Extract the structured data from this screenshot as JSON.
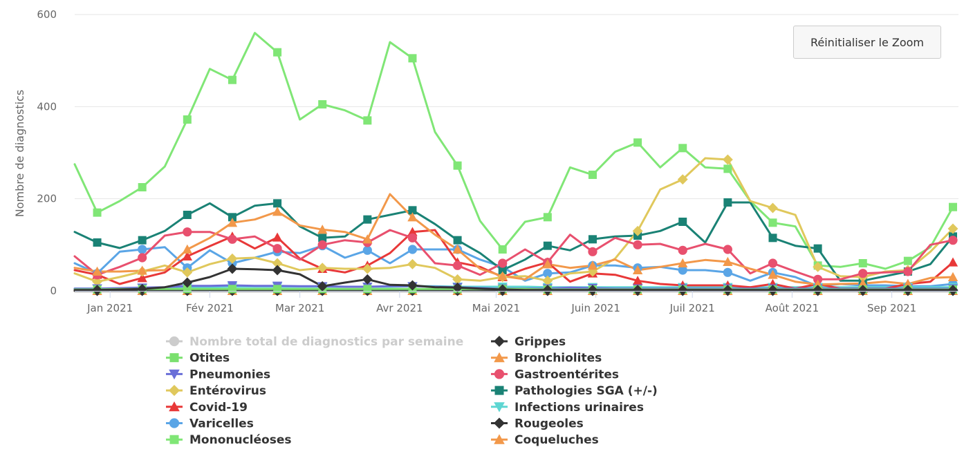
{
  "reset_zoom_label": "Réinitialiser le Zoom",
  "chart_data": {
    "type": "line",
    "title": "",
    "xlabel": "",
    "ylabel": "Nombre de diagnostics",
    "ylim": [
      0,
      600
    ],
    "yticks": [
      0,
      200,
      400,
      600
    ],
    "x_start": "2020-12-21",
    "x_step_days": 7,
    "week_count": 40,
    "month_ticks": [
      {
        "label": "Jan 2021",
        "date": "2021-01-01"
      },
      {
        "label": "Fév 2021",
        "date": "2021-02-01"
      },
      {
        "label": "Mar 2021",
        "date": "2021-03-01"
      },
      {
        "label": "Avr 2021",
        "date": "2021-04-01"
      },
      {
        "label": "Mai 2021",
        "date": "2021-05-01"
      },
      {
        "label": "Juin 2021",
        "date": "2021-06-01"
      },
      {
        "label": "Juil 2021",
        "date": "2021-07-01"
      },
      {
        "label": "Août 2021",
        "date": "2021-08-01"
      },
      {
        "label": "Sep 2021",
        "date": "2021-09-01"
      }
    ],
    "grid": true,
    "legend_position": "bottom",
    "series": [
      {
        "name": "Nombre total de diagnostics par semaine",
        "color": "#cccccc",
        "marker": "circle",
        "hidden": true,
        "values": []
      },
      {
        "name": "Grippes",
        "color": "#333333",
        "marker": "diamond",
        "values": [
          2,
          2,
          3,
          4,
          8,
          18,
          30,
          48,
          47,
          45,
          36,
          10,
          18,
          25,
          13,
          12,
          8,
          7,
          5,
          3,
          2,
          2,
          2,
          2,
          2,
          2,
          2,
          2,
          2,
          2,
          2,
          2,
          2,
          2,
          2,
          2,
          2,
          2,
          2,
          2
        ]
      },
      {
        "name": "Otites",
        "color": "#7ae06e",
        "marker": "square",
        "values": [
          3,
          3,
          4,
          4,
          4,
          4,
          4,
          4,
          4,
          4,
          4,
          4,
          4,
          4,
          4,
          4,
          4,
          4,
          4,
          4,
          4,
          3,
          3,
          3,
          3,
          3,
          3,
          3,
          3,
          3,
          3,
          3,
          3,
          3,
          3,
          3,
          3,
          3,
          3,
          3
        ]
      },
      {
        "name": "Bronchiolites",
        "color": "#f2984a",
        "marker": "triangle",
        "values": [
          50,
          42,
          42,
          44,
          45,
          90,
          115,
          148,
          155,
          172,
          142,
          133,
          128,
          112,
          210,
          160,
          122,
          90,
          48,
          32,
          25,
          58,
          50,
          55,
          68,
          45,
          52,
          60,
          67,
          63,
          48,
          35,
          20,
          14,
          15,
          16,
          20,
          15,
          28,
          30
        ]
      },
      {
        "name": "Pneumonies",
        "color": "#6a6fd8",
        "marker": "triangle-down",
        "values": [
          5,
          5,
          6,
          7,
          8,
          11,
          11,
          12,
          11,
          11,
          10,
          10,
          9,
          9,
          10,
          10,
          9,
          8,
          6,
          5,
          5,
          5,
          7,
          6,
          5,
          5,
          5,
          5,
          5,
          5,
          5,
          5,
          5,
          5,
          5,
          5,
          5,
          5,
          5,
          5
        ]
      },
      {
        "name": "Gastroentérites",
        "color": "#e8506e",
        "marker": "circle",
        "values": [
          75,
          35,
          52,
          72,
          120,
          128,
          128,
          112,
          118,
          92,
          68,
          100,
          110,
          105,
          132,
          115,
          60,
          55,
          35,
          60,
          90,
          62,
          122,
          85,
          115,
          100,
          102,
          88,
          102,
          90,
          38,
          60,
          42,
          25,
          25,
          38,
          40,
          42,
          100,
          110
        ]
      },
      {
        "name": "Entérovirus",
        "color": "#e0c85c",
        "marker": "diamond",
        "values": [
          38,
          20,
          30,
          42,
          55,
          40,
          58,
          70,
          72,
          60,
          45,
          50,
          48,
          48,
          50,
          58,
          50,
          25,
          22,
          30,
          32,
          22,
          38,
          42,
          70,
          130,
          220,
          242,
          288,
          285,
          195,
          180,
          165,
          52,
          32,
          30,
          42,
          45,
          85,
          135
        ]
      },
      {
        "name": "Pathologies SGA (+/-)",
        "color": "#1a8275",
        "marker": "square",
        "values": [
          128,
          105,
          93,
          110,
          130,
          165,
          190,
          160,
          185,
          190,
          140,
          115,
          118,
          155,
          165,
          175,
          145,
          110,
          82,
          45,
          68,
          98,
          88,
          112,
          118,
          120,
          130,
          150,
          105,
          192,
          192,
          115,
          98,
          92,
          22,
          22,
          32,
          42,
          58,
          118
        ]
      },
      {
        "name": "Covid-19",
        "color": "#e83838",
        "marker": "triangle",
        "values": [
          45,
          35,
          15,
          28,
          40,
          75,
          97,
          118,
          92,
          116,
          70,
          48,
          40,
          55,
          82,
          128,
          132,
          62,
          52,
          30,
          48,
          62,
          20,
          38,
          35,
          22,
          15,
          12,
          12,
          12,
          8,
          15,
          5,
          15,
          5,
          5,
          5,
          15,
          20,
          62
        ]
      },
      {
        "name": "Infections urinaires",
        "color": "#5ed6d2",
        "marker": "triangle-down",
        "values": [
          5,
          5,
          5,
          6,
          6,
          7,
          8,
          9,
          9,
          9,
          9,
          9,
          9,
          9,
          9,
          10,
          10,
          9,
          9,
          9,
          9,
          8,
          8,
          8,
          8,
          8,
          8,
          8,
          8,
          8,
          8,
          8,
          8,
          8,
          8,
          8,
          8,
          8,
          8,
          8
        ]
      },
      {
        "name": "Varicelles",
        "color": "#5aa5e6",
        "marker": "circle",
        "values": [
          60,
          38,
          85,
          90,
          95,
          50,
          88,
          60,
          72,
          85,
          82,
          98,
          72,
          88,
          60,
          90,
          90,
          90,
          68,
          52,
          22,
          38,
          40,
          55,
          55,
          50,
          52,
          45,
          45,
          40,
          22,
          40,
          30,
          10,
          15,
          12,
          12,
          10,
          10,
          15
        ]
      },
      {
        "name": "Rougeoles",
        "color": "#333333",
        "marker": "diamond",
        "values": [
          0,
          0,
          0,
          0,
          0,
          0,
          0,
          0,
          0,
          0,
          0,
          0,
          0,
          0,
          0,
          0,
          0,
          0,
          0,
          0,
          0,
          0,
          0,
          0,
          0,
          0,
          0,
          0,
          0,
          0,
          0,
          0,
          0,
          0,
          0,
          0,
          0,
          0,
          0,
          0
        ]
      },
      {
        "name": "Mononucléoses",
        "color": "#80e676",
        "marker": "square",
        "values": [
          275,
          170,
          195,
          225,
          270,
          372,
          482,
          458,
          560,
          518,
          372,
          405,
          392,
          370,
          540,
          505,
          345,
          272,
          152,
          90,
          150,
          160,
          268,
          252,
          302,
          322,
          268,
          310,
          268,
          265,
          195,
          148,
          140,
          55,
          52,
          60,
          48,
          65,
          95,
          182
        ]
      },
      {
        "name": "Coqueluches",
        "color": "#f2984a",
        "marker": "triangle",
        "values": [
          0,
          0,
          0,
          0,
          0,
          0,
          0,
          0,
          0,
          0,
          0,
          0,
          0,
          0,
          0,
          0,
          0,
          0,
          0,
          0,
          0,
          0,
          0,
          0,
          0,
          0,
          0,
          0,
          0,
          0,
          0,
          0,
          0,
          0,
          0,
          0,
          0,
          0,
          0,
          0
        ]
      }
    ]
  }
}
